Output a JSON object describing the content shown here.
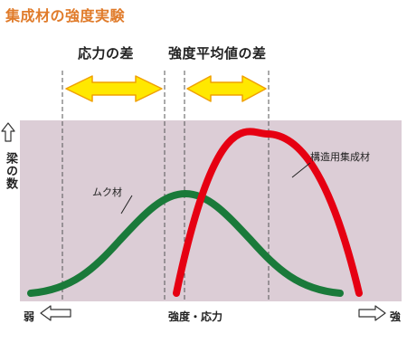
{
  "title": "集成材の強度実験",
  "header_left": "応力の差",
  "header_right": "強度平均値の差",
  "y_axis_label": "梁の数",
  "x_axis_label": "強度・応力",
  "x_axis_weak": "弱",
  "x_axis_strong": "強",
  "series": [
    {
      "name": "ムク材",
      "color": "#1a7a3a"
    },
    {
      "name": "構造用集成材",
      "color": "#e60012"
    }
  ],
  "colors": {
    "plot_bg": "#dccdd6",
    "arrow_fill": "#ffe800",
    "arrow_stroke": "#f0a000",
    "title": "#e07b2a"
  }
}
